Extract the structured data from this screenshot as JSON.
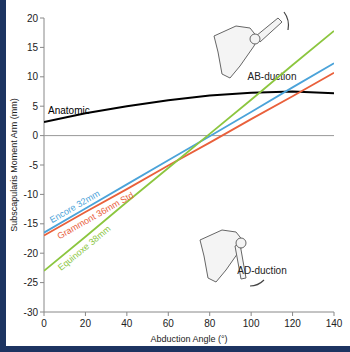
{
  "chart_data": {
    "type": "line",
    "x_label": "Abduction Angle (°)",
    "y_label": "Subscapularis Moment Arm (mm)",
    "x": [
      0,
      20,
      40,
      60,
      80,
      100,
      120,
      140
    ],
    "series": [
      {
        "name": "Anatomic",
        "color": "#000000",
        "values": [
          2.3,
          3.8,
          5.0,
          6.0,
          6.8,
          7.3,
          7.5,
          7.2
        ]
      },
      {
        "name": "Encore 32mm",
        "color": "#4ba3d9",
        "values": [
          -16.5,
          -12.4,
          -8.3,
          -4.2,
          -0.1,
          4.0,
          8.2,
          12.3
        ]
      },
      {
        "name": "Grammont 36mm Std",
        "color": "#e9603b",
        "values": [
          -17.0,
          -13.0,
          -9.1,
          -5.1,
          -1.2,
          2.8,
          6.7,
          10.7
        ]
      },
      {
        "name": "Equinoxe 38mm",
        "color": "#8cc63f",
        "values": [
          -23.0,
          -17.2,
          -11.3,
          -5.5,
          0.3,
          6.1,
          12.0,
          17.8
        ]
      }
    ],
    "annotations": [
      "AB-duction",
      "AD-duction"
    ],
    "xlim": [
      0,
      140
    ],
    "xticks": [
      0,
      20,
      40,
      60,
      80,
      100,
      120,
      140
    ],
    "ylim": [
      -30,
      20
    ],
    "yticks": [
      -30,
      -25,
      -20,
      -15,
      -10,
      -5,
      0,
      5,
      10,
      15,
      20
    ],
    "grid": false
  }
}
